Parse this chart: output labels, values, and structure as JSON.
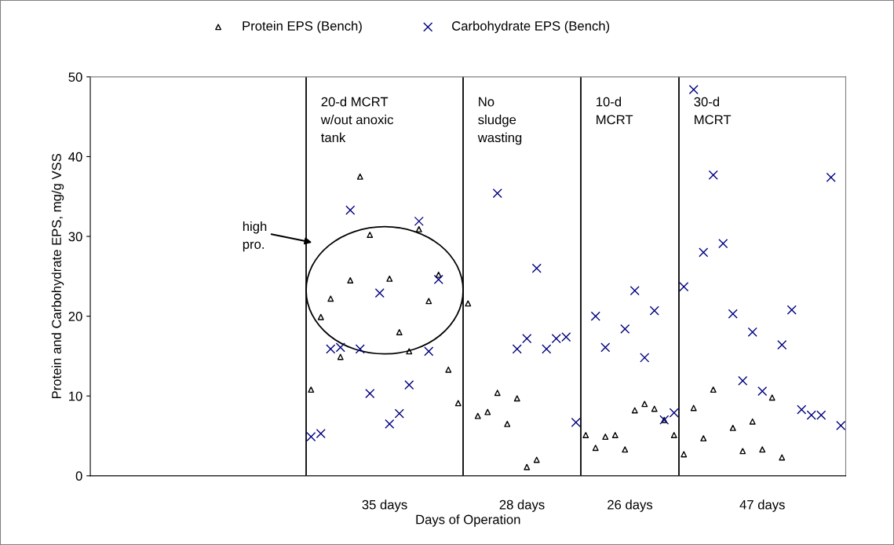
{
  "chart_data": {
    "type": "scatter",
    "xlabel": "Days of Operation",
    "ylabel": "Protein and Carbohydrate EPS, mg/g VSS",
    "categories": [
      null,
      null,
      null,
      null,
      null,
      null,
      null,
      null,
      null,
      null,
      null,
      null,
      null,
      null,
      null,
      null,
      null,
      null,
      null,
      null,
      null,
      null,
      null,
      null,
      null,
      null,
      null,
      null,
      null,
      null,
      null,
      null,
      null,
      null,
      null,
      null,
      null,
      null,
      null,
      null,
      null,
      null,
      null,
      null,
      null,
      null,
      null,
      null,
      null,
      null,
      null,
      null,
      null,
      null,
      null,
      null,
      null,
      null,
      null,
      null,
      null,
      null,
      null,
      null,
      null,
      null,
      null,
      null,
      null,
      null,
      null,
      null,
      null,
      null,
      null,
      null,
      null
    ],
    "series": [
      {
        "name": "Protein EPS (Bench)",
        "color": "#000000",
        "marker": "triangle",
        "values": [
          null,
          null,
          null,
          null,
          null,
          null,
          null,
          null,
          null,
          null,
          null,
          null,
          null,
          null,
          null,
          null,
          null,
          null,
          null,
          null,
          null,
          null,
          10.8,
          19.9,
          22.2,
          14.9,
          24.5,
          37.5,
          30.2,
          null,
          24.7,
          18.0,
          15.6,
          30.9,
          21.9,
          25.2,
          13.3,
          9.1,
          21.6,
          7.5,
          8.0,
          10.4,
          6.5,
          9.7,
          1.1,
          2.0,
          null,
          null,
          null,
          null,
          5.1,
          3.5,
          4.9,
          5.1,
          3.3,
          8.2,
          9.0,
          8.4,
          7.0,
          5.1,
          2.7,
          8.5,
          4.7,
          10.8,
          null,
          6.0,
          3.1,
          6.8,
          3.3,
          9.8,
          2.3,
          null,
          null,
          null,
          null,
          null,
          null
        ]
      },
      {
        "name": "Carbohydrate EPS (Bench)",
        "color": "#000080",
        "marker": "cross",
        "values": [
          null,
          null,
          null,
          null,
          null,
          null,
          null,
          null,
          null,
          null,
          null,
          null,
          null,
          null,
          null,
          null,
          null,
          null,
          null,
          null,
          null,
          null,
          4.9,
          5.3,
          15.9,
          16.1,
          33.3,
          15.9,
          10.3,
          22.9,
          6.5,
          7.8,
          11.4,
          31.9,
          15.6,
          24.6,
          null,
          null,
          null,
          null,
          null,
          35.4,
          null,
          15.9,
          17.2,
          26.0,
          15.9,
          17.2,
          17.4,
          6.7,
          null,
          20.0,
          16.1,
          null,
          18.4,
          23.2,
          14.8,
          20.7,
          7.0,
          7.9,
          23.7,
          48.4,
          28.0,
          37.7,
          29.1,
          20.3,
          11.9,
          18.0,
          10.6,
          null,
          16.4,
          20.8,
          8.3,
          7.6,
          7.6,
          37.4,
          6.3
        ]
      }
    ],
    "ylim": [
      0,
      50
    ],
    "yticks": [
      0,
      10,
      20,
      30,
      40,
      50
    ],
    "grid": false,
    "legend": "top",
    "annotations": [
      "20-d MCRT\nw/out anoxic\ntank",
      "No\nsludge\nwasting",
      "10-d\nMCRT",
      "30-d\nMCRT",
      "35 days",
      "28 days",
      "26 days",
      "47 days",
      "high\npro."
    ]
  }
}
